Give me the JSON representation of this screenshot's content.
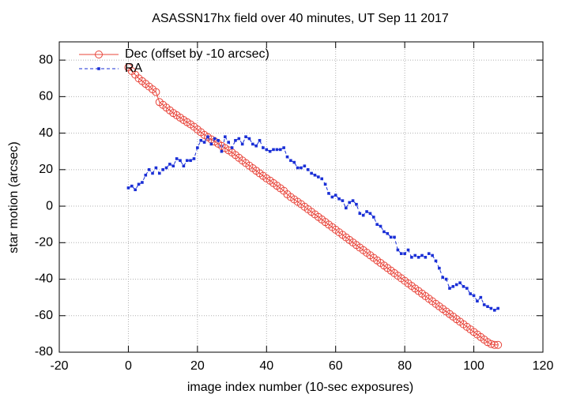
{
  "chart_data": {
    "type": "line",
    "title": "ASASSN17hx field over 40 minutes, UT Sep 11 2017",
    "x_label": "image index number (10-sec exposures)",
    "y_label": "star motion (arcsec)",
    "xlim": [
      -20,
      120
    ],
    "xticks": [
      -20,
      0,
      20,
      40,
      60,
      80,
      100,
      120
    ],
    "ylim": [
      -80,
      90
    ],
    "yticks": [
      -80,
      -60,
      -40,
      -20,
      0,
      20,
      40,
      60,
      80
    ],
    "grid": true,
    "legend": "top-left",
    "x": [
      0,
      1,
      2,
      3,
      4,
      5,
      6,
      7,
      8,
      9,
      10,
      11,
      12,
      13,
      14,
      15,
      16,
      17,
      18,
      19,
      20,
      21,
      22,
      23,
      24,
      25,
      26,
      27,
      28,
      29,
      30,
      31,
      32,
      33,
      34,
      35,
      36,
      37,
      38,
      39,
      40,
      41,
      42,
      43,
      44,
      45,
      46,
      47,
      48,
      49,
      50,
      51,
      52,
      53,
      54,
      55,
      56,
      57,
      58,
      59,
      60,
      61,
      62,
      63,
      64,
      65,
      66,
      67,
      68,
      69,
      70,
      71,
      72,
      73,
      74,
      75,
      76,
      77,
      78,
      79,
      80,
      81,
      82,
      83,
      84,
      85,
      86,
      87,
      88,
      89,
      90,
      91,
      92,
      93,
      94,
      95,
      96,
      97,
      98,
      99,
      100,
      101,
      102,
      103,
      104,
      105,
      106,
      107
    ],
    "series": [
      {
        "name": "Dec (offset by -10 arcsec)",
        "color": "#e8443a",
        "marker": "circle",
        "dashed": false,
        "values": [
          76,
          74,
          72,
          70,
          68.5,
          67,
          65.5,
          64,
          62.5,
          57,
          55.5,
          54,
          52.5,
          51,
          49.8,
          48.5,
          47.2,
          46,
          44.8,
          43.5,
          42,
          40.5,
          39,
          37.8,
          36.6,
          35.4,
          34.2,
          33,
          31.8,
          30.6,
          29.4,
          28,
          26.5,
          25,
          23.6,
          22.2,
          20.8,
          19.4,
          18,
          16.6,
          15.2,
          14,
          12.6,
          11.2,
          9.8,
          8.4,
          6.5,
          5,
          3.7,
          2.4,
          1.1,
          -0.3,
          -1.7,
          -3.1,
          -4.5,
          -5.9,
          -7.3,
          -8.7,
          -10.1,
          -11.5,
          -12.9,
          -14.3,
          -15.7,
          -17.1,
          -18.5,
          -19.9,
          -21.3,
          -22.7,
          -24.1,
          -25.5,
          -26.9,
          -28.3,
          -29.7,
          -31.1,
          -32.5,
          -33.9,
          -35.3,
          -36.7,
          -38.1,
          -39.5,
          -40.9,
          -42.3,
          -43.7,
          -45.1,
          -46.5,
          -47.9,
          -49.3,
          -50.7,
          -52.1,
          -53.5,
          -54.9,
          -56.3,
          -57.7,
          -59.1,
          -60.5,
          -61.9,
          -63.3,
          -64.7,
          -66.1,
          -67.5,
          -68.9,
          -70.3,
          -71.7,
          -73.1,
          -74.5,
          -75.5,
          -76,
          -76
        ]
      },
      {
        "name": "RA",
        "color": "#1a2fd6",
        "marker": "square",
        "dashed": true,
        "values": [
          10,
          11,
          9,
          12,
          13,
          17,
          20,
          18,
          21,
          18,
          20,
          21,
          23,
          22,
          26,
          25,
          22,
          25,
          25,
          26,
          32,
          36,
          35,
          38,
          34,
          37,
          36,
          30,
          38,
          35,
          32,
          36,
          37,
          34,
          38,
          37,
          34,
          33,
          36,
          32,
          31,
          30,
          31,
          31,
          31,
          32,
          27,
          25,
          24,
          21,
          21,
          22,
          20,
          18,
          17,
          16,
          15,
          12,
          7,
          5,
          6,
          4,
          3,
          -1,
          2,
          3,
          1,
          -4,
          -5,
          -3,
          -4,
          -6,
          -10,
          -11,
          -14,
          -15,
          -17,
          -17,
          -24,
          -26,
          -26,
          -24,
          -28,
          -27,
          -28,
          -27,
          -28,
          -26,
          -27,
          -30,
          -34,
          -39,
          -40,
          -45,
          -44,
          -43,
          -42,
          -44,
          -45,
          -48,
          -49,
          -52,
          -50,
          -54,
          -55,
          -56,
          -57,
          -56
        ]
      }
    ]
  }
}
